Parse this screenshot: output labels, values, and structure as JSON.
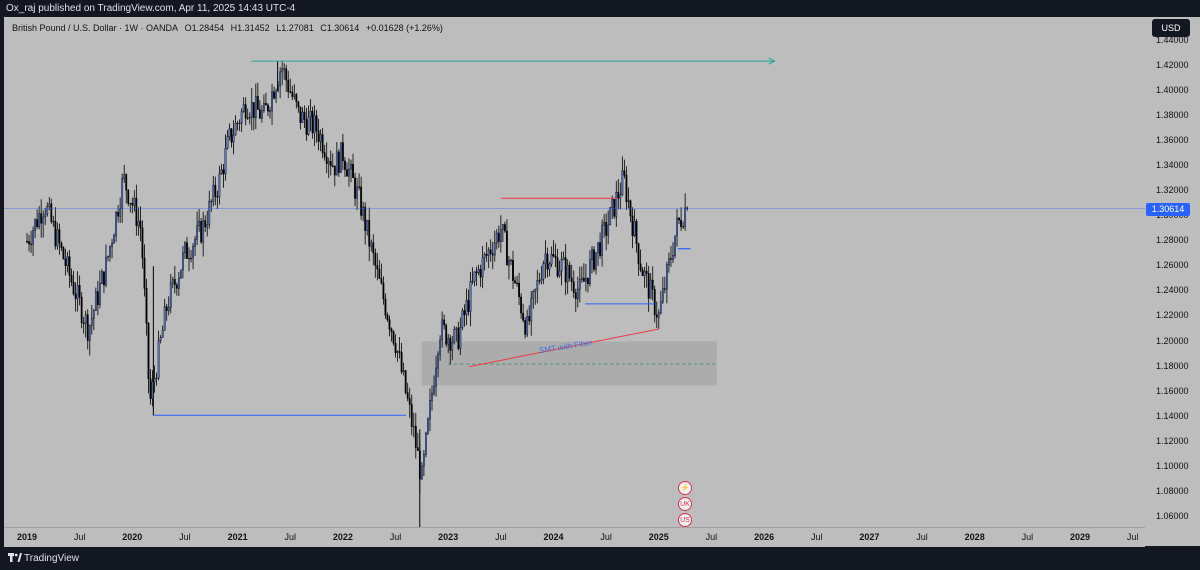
{
  "publish_line": "Ox_raj published on TradingView.com, Apr 11, 2025 14:43 UTC-4",
  "header": {
    "symbol": "British Pound / U.S. Dollar · 1W · OANDA",
    "open": "O1.28454",
    "high": "H1.31452",
    "low": "L1.27081",
    "close": "C1.30614",
    "change": "+0.01628 (+1.26%)"
  },
  "currency_button": "USD",
  "last_price": "1.30614",
  "brand": "TradingView",
  "annotation_text": "SMT with Fiber",
  "colors": {
    "plot_bg": "#bdbdbd",
    "frame": "#131722",
    "price_line": "#2962ff",
    "accent_teal": "#26a69a",
    "accent_red": "#f23645"
  },
  "chart_data": {
    "type": "candlestick",
    "timeframe": "1W",
    "ylim": [
      1.05,
      1.45
    ],
    "y_ticks": [
      "1.44000",
      "1.42000",
      "1.40000",
      "1.38000",
      "1.36000",
      "1.34000",
      "1.32000",
      "1.30000",
      "1.28000",
      "1.26000",
      "1.24000",
      "1.22000",
      "1.20000",
      "1.18000",
      "1.16000",
      "1.14000",
      "1.12000",
      "1.10000",
      "1.08000",
      "1.06000"
    ],
    "x_ticks": [
      "2019",
      "Jul",
      "2020",
      "Jul",
      "2021",
      "Jul",
      "2022",
      "Jul",
      "2023",
      "Jul",
      "2024",
      "Jul",
      "2025",
      "Jul",
      "2026",
      "Jul",
      "2027",
      "Jul",
      "2028",
      "Jul",
      "2029",
      "Jul"
    ],
    "approx_close_path": [
      [
        "2019-01",
        1.28
      ],
      [
        "2019-03",
        1.31
      ],
      [
        "2019-05",
        1.27
      ],
      [
        "2019-08",
        1.21
      ],
      [
        "2019-10",
        1.26
      ],
      [
        "2019-12",
        1.33
      ],
      [
        "2020-02",
        1.29
      ],
      [
        "2020-03",
        1.15
      ],
      [
        "2020-05",
        1.23
      ],
      [
        "2020-07",
        1.27
      ],
      [
        "2020-09",
        1.29
      ],
      [
        "2020-11",
        1.33
      ],
      [
        "2020-12",
        1.36
      ],
      [
        "2021-02",
        1.39
      ],
      [
        "2021-04",
        1.38
      ],
      [
        "2021-06",
        1.42
      ],
      [
        "2021-08",
        1.38
      ],
      [
        "2021-10",
        1.37
      ],
      [
        "2021-12",
        1.34
      ],
      [
        "2022-01",
        1.35
      ],
      [
        "2022-03",
        1.31
      ],
      [
        "2022-05",
        1.25
      ],
      [
        "2022-07",
        1.2
      ],
      [
        "2022-09",
        1.13
      ],
      [
        "2022-10",
        1.09
      ],
      [
        "2022-12",
        1.21
      ],
      [
        "2023-02",
        1.2
      ],
      [
        "2023-04",
        1.25
      ],
      [
        "2023-07",
        1.29
      ],
      [
        "2023-10",
        1.21
      ],
      [
        "2023-12",
        1.27
      ],
      [
        "2024-02",
        1.26
      ],
      [
        "2024-04",
        1.24
      ],
      [
        "2024-07",
        1.29
      ],
      [
        "2024-09",
        1.33
      ],
      [
        "2024-11",
        1.26
      ],
      [
        "2025-01",
        1.22
      ],
      [
        "2025-03",
        1.29
      ],
      [
        "2025-04",
        1.306
      ]
    ],
    "last_close": 1.30614,
    "levels": [
      {
        "name": "high-ray",
        "price": 1.4236,
        "color": "#26a69a"
      },
      {
        "name": "low-level-2020",
        "price": 1.1412,
        "color": "#2962ff"
      },
      {
        "name": "mid-high-2023",
        "price": 1.3143,
        "color": "#f23645"
      },
      {
        "name": "level-2024",
        "price": 1.23,
        "color": "#2962ff"
      }
    ],
    "zone": {
      "top": 1.2,
      "bottom": 1.165,
      "mid": 1.182,
      "label": "SMT with Fiber"
    },
    "smt_line": {
      "from": 1.18,
      "to": 1.21,
      "color": "#f23645"
    }
  }
}
